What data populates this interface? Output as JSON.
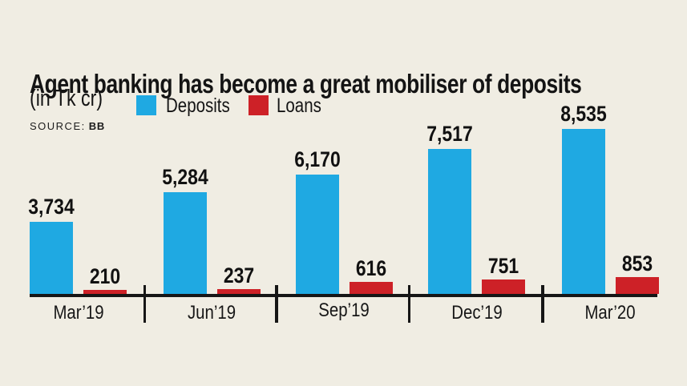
{
  "header": {
    "title": "Agent banking has become a great mobiliser of deposits",
    "subtitle": "(in Tk cr)",
    "source_label": "SOURCE:",
    "source_value": "BB"
  },
  "legend": [
    {
      "label": "Deposits",
      "color": "#1fa9e2"
    },
    {
      "label": "Loans",
      "color": "#cd2127"
    }
  ],
  "colors": {
    "background": "#f0ede3",
    "deposits": "#1fa9e2",
    "loans": "#cd2127",
    "axis": "#161616",
    "text": "#141414"
  },
  "chart_data": {
    "type": "bar",
    "title": "Agent banking has become a great mobiliser of deposits",
    "subtitle": "(in Tk cr)",
    "source": "BB",
    "unit": "Tk cr",
    "categories": [
      "Mar’19",
      "Jun’19",
      "Sep’19",
      "Dec’19",
      "Mar’20"
    ],
    "series": [
      {
        "name": "Deposits",
        "color": "#1fa9e2",
        "values": [
          3734,
          5284,
          6170,
          7517,
          8535
        ],
        "labels": [
          "3,734",
          "5,284",
          "6,170",
          "7,517",
          "8,535"
        ]
      },
      {
        "name": "Loans",
        "color": "#cd2127",
        "values": [
          210,
          237,
          616,
          751,
          853
        ],
        "labels": [
          "210",
          "237",
          "616",
          "751",
          "853"
        ]
      }
    ],
    "ylim": [
      0,
      9000
    ],
    "grid": false,
    "y_axis_shown": false,
    "legend_position": "top-left",
    "value_labels": "above-bars"
  }
}
